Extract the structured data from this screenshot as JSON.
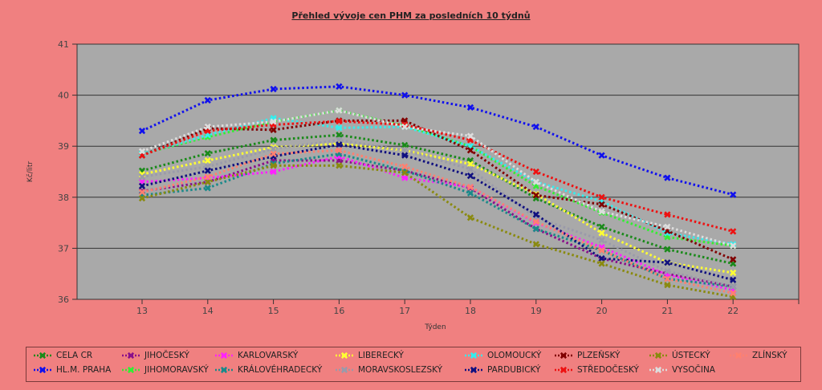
{
  "chart_data": {
    "type": "line",
    "title": "Přehled vývoje cen PHM za posledních 10 týdnů",
    "xlabel": "Týden",
    "ylabel": "Kč/litr",
    "categories": [
      "13",
      "14",
      "15",
      "16",
      "17",
      "18",
      "19",
      "20",
      "21",
      "22"
    ],
    "ylim": [
      36,
      41
    ],
    "yticks": [
      "36",
      "37",
      "38",
      "39",
      "40",
      "41"
    ],
    "grid": "horizontal",
    "legend_position": "bottom",
    "plot_background": "#a9a9a9",
    "series": [
      {
        "name": "CELA CR",
        "color": "#1a8a1a",
        "values": [
          38.52,
          38.86,
          39.12,
          39.22,
          39.02,
          38.72,
          37.98,
          37.42,
          36.98,
          36.7
        ]
      },
      {
        "name": "HL.M. PRAHA",
        "color": "#1010ee",
        "values": [
          39.3,
          39.9,
          40.12,
          40.17,
          40.0,
          39.76,
          39.38,
          38.82,
          38.38,
          38.05
        ]
      },
      {
        "name": "JIHOČESKÝ",
        "color": "#8a108a",
        "values": [
          38.12,
          38.3,
          38.72,
          38.72,
          38.52,
          38.18,
          37.38,
          36.8,
          36.5,
          36.25
        ]
      },
      {
        "name": "JIHOMORAVSKÝ",
        "color": "#33ee33",
        "values": [
          38.85,
          39.18,
          39.48,
          39.7,
          39.4,
          39.0,
          38.22,
          37.7,
          37.22,
          37.05
        ]
      },
      {
        "name": "KARLOVARSKÝ",
        "color": "#ff22ff",
        "values": [
          38.3,
          38.38,
          38.5,
          38.8,
          38.38,
          38.2,
          37.5,
          37.02,
          36.48,
          36.18
        ]
      },
      {
        "name": "KRÁLOVÉHRADECKÝ",
        "color": "#1a8a8a",
        "values": [
          38.04,
          38.18,
          38.66,
          38.85,
          38.52,
          38.08,
          37.38,
          36.96,
          36.4,
          36.25
        ]
      },
      {
        "name": "LIBERECKÝ",
        "color": "#ffff33",
        "values": [
          38.45,
          38.72,
          38.98,
          39.05,
          38.92,
          38.65,
          38.06,
          37.3,
          36.72,
          36.52
        ]
      },
      {
        "name": "MORAVSKOSLEZSKÝ",
        "color": "#9a9aaa",
        "values": [
          38.4,
          38.6,
          38.95,
          39.12,
          38.92,
          38.55,
          37.6,
          37.16,
          36.55,
          36.25
        ]
      },
      {
        "name": "OLOMOUCKÝ",
        "color": "#33eeee",
        "values": [
          38.85,
          39.22,
          39.55,
          39.36,
          39.38,
          39.0,
          38.3,
          37.92,
          37.3,
          37.08
        ]
      },
      {
        "name": "PARDUBICKÝ",
        "color": "#101080",
        "values": [
          38.22,
          38.52,
          38.8,
          39.03,
          38.82,
          38.42,
          37.66,
          36.8,
          36.72,
          36.38
        ]
      },
      {
        "name": "PLZEŇSKÝ",
        "color": "#800000",
        "values": [
          38.82,
          39.35,
          39.32,
          39.5,
          39.5,
          38.92,
          38.04,
          37.86,
          37.34,
          36.78
        ]
      },
      {
        "name": "STŘEDOČESKÝ",
        "color": "#ee1111",
        "values": [
          38.82,
          39.3,
          39.42,
          39.49,
          39.42,
          39.12,
          38.5,
          38.0,
          37.66,
          37.33
        ]
      },
      {
        "name": "ÚSTECKÝ",
        "color": "#8a8a10",
        "values": [
          37.98,
          38.3,
          38.62,
          38.62,
          38.48,
          37.6,
          37.08,
          36.7,
          36.28,
          36.05
        ]
      },
      {
        "name": "VYSOČINA",
        "color": "#dddddd",
        "values": [
          38.9,
          39.38,
          39.48,
          39.7,
          39.38,
          39.2,
          38.3,
          37.72,
          37.42,
          37.05
        ]
      },
      {
        "name": "ZLÍNSKÝ",
        "color": "#ff8070",
        "values": [
          38.1,
          38.4,
          38.85,
          38.92,
          38.6,
          38.2,
          37.52,
          36.96,
          36.4,
          36.12
        ]
      }
    ]
  },
  "legend_order": [
    "CELA CR",
    "HL.M. PRAHA",
    "JIHOČESKÝ",
    "JIHOMORAVSKÝ",
    "KARLOVARSKÝ",
    "KRÁLOVÉHRADECKÝ",
    "LIBERECKÝ",
    "MORAVSKOSLEZSKÝ",
    "OLOMOUCKÝ",
    "PARDUBICKÝ",
    "PLZEŇSKÝ",
    "STŘEDOČESKÝ",
    "ÚSTECKÝ",
    "VYSOČINA",
    "ZLÍNSKÝ"
  ]
}
